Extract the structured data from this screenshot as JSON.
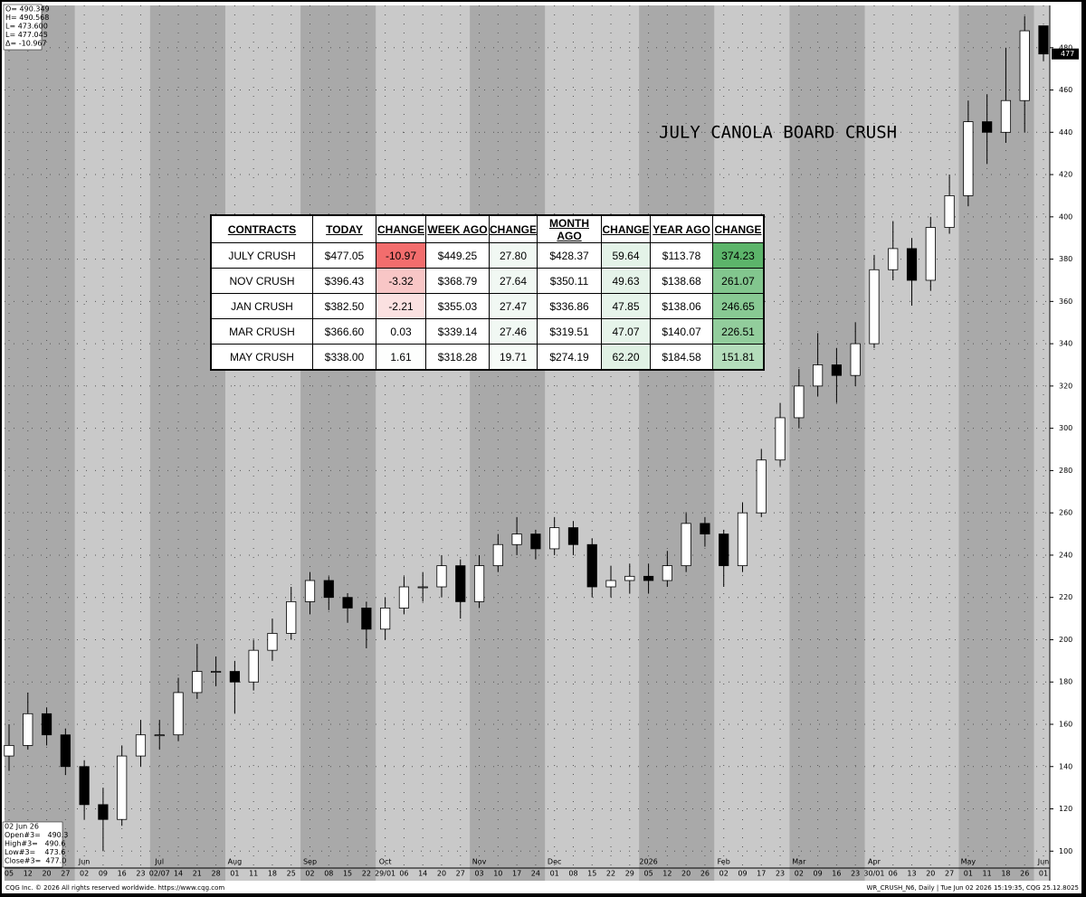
{
  "chart_data": {
    "type": "candlestick",
    "title": "JULY CANOLA BOARD CRUSH",
    "categories": [
      "05",
      "12",
      "20",
      "27",
      "02",
      "09",
      "16",
      "23",
      "02/07",
      "14",
      "21",
      "28",
      "01",
      "11",
      "18",
      "25",
      "02",
      "08",
      "15",
      "22",
      "29/01",
      "06",
      "14",
      "20",
      "27",
      "03",
      "10",
      "17",
      "24",
      "01",
      "08",
      "15",
      "22",
      "29",
      "05",
      "12",
      "20",
      "26",
      "02",
      "09",
      "17",
      "23",
      "02",
      "09",
      "16",
      "23",
      "30/01",
      "06",
      "13",
      "20",
      "27",
      "01",
      "11",
      "18",
      "26",
      "01"
    ],
    "months": [
      null,
      null,
      null,
      null,
      "Jun",
      null,
      null,
      null,
      "Jul",
      null,
      null,
      null,
      "Aug",
      null,
      null,
      null,
      "Sep",
      null,
      null,
      null,
      "Oct",
      null,
      null,
      null,
      null,
      "Nov",
      null,
      null,
      null,
      "Dec",
      null,
      null,
      null,
      null,
      "2026",
      null,
      null,
      null,
      "Feb",
      null,
      null,
      null,
      "Mar",
      null,
      null,
      null,
      "Apr",
      null,
      null,
      null,
      null,
      "May",
      null,
      null,
      null,
      "Jun"
    ],
    "open": [
      145,
      150,
      165,
      155,
      140,
      122,
      115,
      145,
      155,
      155,
      175,
      185,
      185,
      180,
      195,
      203,
      218,
      228,
      220,
      215,
      205,
      215,
      225,
      225,
      235,
      218,
      235,
      245,
      250,
      243,
      253,
      245,
      225,
      228,
      230,
      228,
      235,
      255,
      250,
      235,
      260,
      285,
      305,
      320,
      330,
      325,
      340,
      375,
      385,
      370,
      395,
      410,
      445,
      440,
      455,
      490.349
    ],
    "high": [
      160,
      175,
      168,
      158,
      143,
      130,
      150,
      162,
      162,
      182,
      198,
      192,
      190,
      200,
      210,
      225,
      232,
      230,
      222,
      218,
      220,
      230,
      232,
      240,
      238,
      240,
      250,
      258,
      252,
      258,
      256,
      248,
      235,
      236,
      236,
      242,
      260,
      258,
      252,
      265,
      290,
      312,
      328,
      345,
      338,
      350,
      382,
      398,
      390,
      400,
      420,
      455,
      458,
      480,
      495,
      490.568
    ],
    "low": [
      138,
      148,
      150,
      136,
      115,
      100,
      112,
      140,
      148,
      152,
      172,
      178,
      165,
      176,
      190,
      200,
      212,
      214,
      208,
      196,
      200,
      212,
      218,
      220,
      210,
      215,
      232,
      240,
      238,
      240,
      240,
      220,
      220,
      222,
      222,
      225,
      232,
      244,
      225,
      232,
      258,
      282,
      300,
      315,
      312,
      320,
      338,
      370,
      358,
      365,
      392,
      405,
      425,
      435,
      440,
      473.6
    ],
    "close": [
      150,
      165,
      155,
      140,
      122,
      115,
      145,
      155,
      155,
      175,
      185,
      185,
      180,
      195,
      203,
      218,
      228,
      220,
      215,
      205,
      215,
      225,
      225,
      235,
      218,
      235,
      245,
      250,
      243,
      253,
      245,
      225,
      228,
      230,
      228,
      235,
      255,
      250,
      235,
      260,
      285,
      305,
      320,
      330,
      325,
      340,
      375,
      385,
      370,
      395,
      410,
      445,
      440,
      455,
      488,
      477.045
    ],
    "ylim": [
      92,
      500
    ],
    "yticks": [
      100,
      120,
      140,
      160,
      180,
      200,
      220,
      240,
      260,
      280,
      300,
      320,
      340,
      360,
      380,
      400,
      420,
      440,
      460,
      480
    ],
    "grid": true,
    "up_color": "#ffffff",
    "down_color": "#000000",
    "last_price_label": "477"
  },
  "info": {
    "top": [
      "O= 490.349",
      "H= 490.568",
      "L= 473.600",
      "L= 477.045",
      "Δ= -10.967"
    ],
    "bottom": [
      "02 Jun 26",
      "Open#3=   490.3",
      "High#3=   490.6",
      "Low#3=    473.6",
      "Close#3=  477.0"
    ]
  },
  "table": {
    "header": [
      "CONTRACTS",
      "TODAY",
      "CHANGE",
      "WEEK AGO",
      "CHANGE",
      "MONTH AGO",
      "CHANGE",
      "YEAR AGO",
      "CHANGE"
    ],
    "rows": [
      [
        "JULY CRUSH",
        "$477.05",
        "-10.97",
        "$449.25",
        "27.80",
        "$428.37",
        "59.64",
        "$113.78",
        "374.23"
      ],
      [
        "NOV CRUSH",
        "$396.43",
        "-3.32",
        "$368.79",
        "27.64",
        "$350.11",
        "49.63",
        "$138.68",
        "261.07"
      ],
      [
        "JAN CRUSH",
        "$382.50",
        "-2.21",
        "$355.03",
        "27.47",
        "$336.86",
        "47.85",
        "$138.06",
        "246.65"
      ],
      [
        "MAR CRUSH",
        "$366.60",
        "0.03",
        "$339.14",
        "27.46",
        "$319.51",
        "47.07",
        "$140.07",
        "226.51"
      ],
      [
        "MAY CRUSH",
        "$338.00",
        "1.61",
        "$318.28",
        "19.71",
        "$274.19",
        "62.20",
        "$184.58",
        "151.81"
      ]
    ],
    "cell_colors": [
      [
        null,
        null,
        "#f26d6d",
        null,
        "#f1f8f3",
        null,
        "#e4f3e8",
        null,
        "#5cb46a"
      ],
      [
        null,
        null,
        "#f8c6c6",
        null,
        "#f1f8f3",
        null,
        "#e5f3e9",
        null,
        "#82c68e"
      ],
      [
        null,
        null,
        "#fbe1e1",
        null,
        "#f1f8f3",
        null,
        "#e6f4ea",
        null,
        "#88c993"
      ],
      [
        null,
        null,
        null,
        null,
        "#f1f8f3",
        null,
        "#e6f4ea",
        null,
        "#92cd9c"
      ],
      [
        null,
        null,
        "#fdfefd",
        null,
        "#f6fbf7",
        null,
        "#e0f1e4",
        null,
        "#b4ddbb"
      ]
    ]
  },
  "footer": {
    "left": "CQG Inc. © 2026 All rights reserved worldwide. https://www.cqg.com",
    "right": "WR_CRUSH_N6, Daily | Tue Jun 02 2026 15:19:35, CQG 25.12.8025"
  }
}
